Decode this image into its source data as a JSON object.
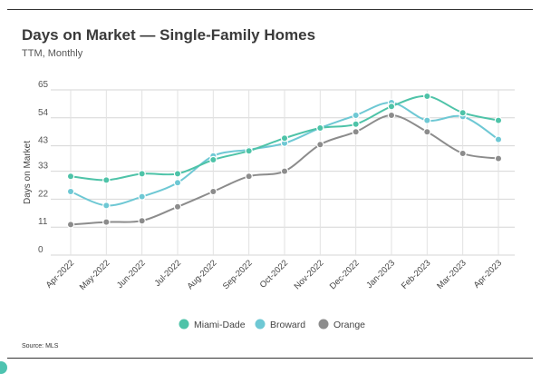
{
  "title": "Days on Market — Single-Family Homes",
  "subtitle": "TTM, Monthly",
  "source": "Source: MLS",
  "chart_data": {
    "type": "line",
    "title": "Days on Market — Single-Family Homes",
    "subtitle": "TTM, Monthly",
    "ylabel": "Days on Market",
    "xlabel": "",
    "ylim": [
      0,
      65
    ],
    "yticks": [
      0,
      11,
      22,
      33,
      43,
      54,
      65
    ],
    "grid": true,
    "legend_position": "bottom-center",
    "categories": [
      "Apr-2022",
      "May-2022",
      "Jun-2022",
      "Jul-2022",
      "Aug-2022",
      "Sep-2022",
      "Oct-2022",
      "Nov-2022",
      "Dec-2022",
      "Jan-2023",
      "Feb-2023",
      "Mar-2023",
      "Apr-2023"
    ],
    "series": [
      {
        "name": "Miami-Dade",
        "color": "#4ec3a8",
        "values": [
          31,
          29.5,
          32,
          32,
          37.5,
          41,
          46,
          50,
          51.5,
          58.5,
          62.5,
          56,
          53
        ]
      },
      {
        "name": "Broward",
        "color": "#6ec8d4",
        "values": [
          25,
          19.5,
          23,
          28.5,
          39,
          41.5,
          44,
          50,
          55,
          60,
          53,
          54.5,
          45.5
        ]
      },
      {
        "name": "Orange",
        "color": "#8c8c8c",
        "values": [
          12,
          13,
          13.5,
          19,
          25,
          31,
          33,
          43.5,
          48.5,
          55,
          48.5,
          40,
          38
        ]
      }
    ]
  }
}
